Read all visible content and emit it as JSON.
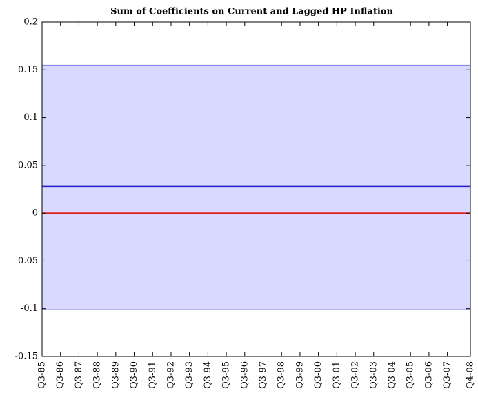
{
  "chart_data": {
    "type": "line",
    "title": "Sum of Coefficients on Current and Lagged HP Inflation",
    "x": [
      1985.5,
      2008.75
    ],
    "band": {
      "lower": [
        -0.101,
        -0.101
      ],
      "upper": [
        0.155,
        0.155
      ],
      "color": "#d9d9ff",
      "edge_color": "#7f7fea"
    },
    "series": [
      {
        "color": "#1f1fd0",
        "values": [
          0.028,
          0.028
        ]
      },
      {
        "color": "#e00000",
        "values": [
          0,
          0
        ]
      }
    ],
    "xlim": [
      1985.5,
      2008.75
    ],
    "xticks": [
      {
        "value": 1985.5,
        "label": "Q3-85"
      },
      {
        "value": 1986.5,
        "label": "Q3-86"
      },
      {
        "value": 1987.5,
        "label": "Q3-87"
      },
      {
        "value": 1988.5,
        "label": "Q3-88"
      },
      {
        "value": 1989.5,
        "label": "Q3-89"
      },
      {
        "value": 1990.5,
        "label": "Q3-90"
      },
      {
        "value": 1991.5,
        "label": "Q3-91"
      },
      {
        "value": 1992.5,
        "label": "Q3-92"
      },
      {
        "value": 1993.5,
        "label": "Q3-93"
      },
      {
        "value": 1994.5,
        "label": "Q3-94"
      },
      {
        "value": 1995.5,
        "label": "Q3-95"
      },
      {
        "value": 1996.5,
        "label": "Q3-96"
      },
      {
        "value": 1997.5,
        "label": "Q3-97"
      },
      {
        "value": 1998.5,
        "label": "Q3-98"
      },
      {
        "value": 1999.5,
        "label": "Q3-99"
      },
      {
        "value": 2000.5,
        "label": "Q3-00"
      },
      {
        "value": 2001.5,
        "label": "Q3-01"
      },
      {
        "value": 2002.5,
        "label": "Q3-02"
      },
      {
        "value": 2003.5,
        "label": "Q3-03"
      },
      {
        "value": 2004.5,
        "label": "Q3-04"
      },
      {
        "value": 2005.5,
        "label": "Q3-05"
      },
      {
        "value": 2006.5,
        "label": "Q3-06"
      },
      {
        "value": 2007.5,
        "label": "Q3-07"
      },
      {
        "value": 2008.75,
        "label": "Q4-08"
      }
    ],
    "ylim": [
      -0.15,
      0.2
    ],
    "yticks": [
      -0.15,
      -0.1,
      -0.05,
      0,
      0.05,
      0.1,
      0.15,
      0.2
    ],
    "grid": false
  }
}
